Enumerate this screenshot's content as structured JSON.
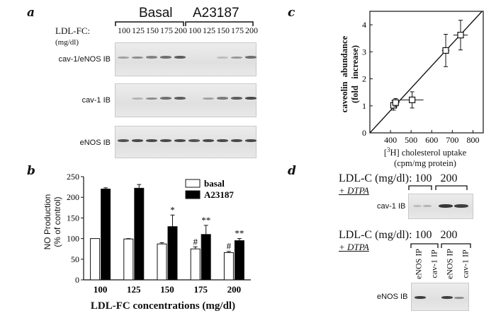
{
  "panels": {
    "a": {
      "label": "a",
      "groups": [
        "Basal",
        "A23187"
      ],
      "row_label_line1": "LDL-FC:",
      "row_label_line2": "(mg/dl)",
      "lane_concentrations": [
        "100",
        "125",
        "150",
        "175",
        "200",
        "100",
        "125",
        "150",
        "175",
        "200"
      ],
      "blots": [
        {
          "label": "cav-1/eNOS IB",
          "intensity": [
            0.35,
            0.45,
            0.5,
            0.6,
            0.7,
            0,
            0,
            0.2,
            0.4,
            0.6
          ]
        },
        {
          "label": "cav-1 IB",
          "intensity": [
            0,
            0.25,
            0.45,
            0.6,
            0.7,
            0,
            0.35,
            0.55,
            0.7,
            0.8
          ]
        },
        {
          "label": "eNOS IB",
          "intensity": [
            0.75,
            0.8,
            0.8,
            0.8,
            0.8,
            0.75,
            0.8,
            0.8,
            0.8,
            0.8
          ]
        }
      ]
    },
    "b": {
      "label": "b",
      "legend": [
        "basal",
        "A23187"
      ],
      "ylabel_line1": "NO Production",
      "ylabel_line2": "(% of control)",
      "xlabel": "LDL-FC concentrations (mg/dl)"
    },
    "c": {
      "label": "c",
      "ylabel_line1": "caveolin  abundance",
      "ylabel_line2": "(fold   increase)",
      "xlabel_line1": "[",
      "xlabel_sup": "3",
      "xlabel_rest": "H] cholesterol uptake",
      "xlabel_line2": "(cpm/mg protein)"
    },
    "d": {
      "label": "d",
      "top_title": "LDL-C (mg/dl): 100   200",
      "top_treatment": "+ DTPA",
      "top_blot_label": "cav-1 IB",
      "bottom_title": "LDL-C (mg/dl): 100   200",
      "bottom_treatment": "+ DTPA",
      "bottom_lanes": [
        "eNOS IP",
        "cav-1 IP",
        "eNOS IP",
        "cav-1 IP"
      ],
      "bottom_blot_label": "eNOS IB"
    }
  },
  "chart_data": [
    {
      "type": "bar",
      "panel": "b",
      "categories": [
        "100",
        "125",
        "150",
        "175",
        "200"
      ],
      "series": [
        {
          "name": "basal",
          "values": [
            100,
            99,
            87,
            75,
            66
          ],
          "errors": [
            0,
            1,
            3,
            5,
            3
          ],
          "color": "#ffffff"
        },
        {
          "name": "A23187",
          "values": [
            220,
            222,
            129,
            110,
            95
          ],
          "errors": [
            3,
            9,
            28,
            22,
            5
          ],
          "color": "#000000"
        }
      ],
      "significance": [
        {
          "category": "150",
          "series": "A23187",
          "mark": "*"
        },
        {
          "category": "175",
          "series": "basal",
          "mark": "#"
        },
        {
          "category": "175",
          "series": "A23187",
          "mark": "**"
        },
        {
          "category": "200",
          "series": "basal",
          "mark": "#"
        },
        {
          "category": "200",
          "series": "A23187",
          "mark": "**"
        }
      ],
      "xlabel": "LDL-FC concentrations (mg/dl)",
      "ylabel": "NO Production (% of control)",
      "ylim": [
        0,
        250
      ],
      "yticks": [
        0,
        50,
        100,
        150,
        200,
        250
      ],
      "legend_position": "top-right"
    },
    {
      "type": "scatter",
      "panel": "c",
      "points": [
        {
          "x": 415,
          "y": 1.02,
          "xerr": 12,
          "yerr": 0.18
        },
        {
          "x": 425,
          "y": 1.12,
          "xerr": 20,
          "yerr": 0.15
        },
        {
          "x": 505,
          "y": 1.22,
          "xerr": 55,
          "yerr": 0.3
        },
        {
          "x": 668,
          "y": 3.05,
          "xerr": 18,
          "yerr": 0.6
        },
        {
          "x": 740,
          "y": 3.62,
          "xerr": 35,
          "yerr": 0.55
        }
      ],
      "fit_line": [
        [
          300,
          0
        ],
        [
          820,
          4.3
        ]
      ],
      "xlim": [
        300,
        850
      ],
      "ylim": [
        0,
        4.5
      ],
      "xticks": [
        400,
        500,
        600,
        700,
        800
      ],
      "yticks": [
        0,
        1,
        2,
        3,
        4
      ],
      "xlabel": "[3H] cholesterol uptake (cpm/mg protein)",
      "ylabel": "caveolin abundance (fold increase)"
    }
  ]
}
